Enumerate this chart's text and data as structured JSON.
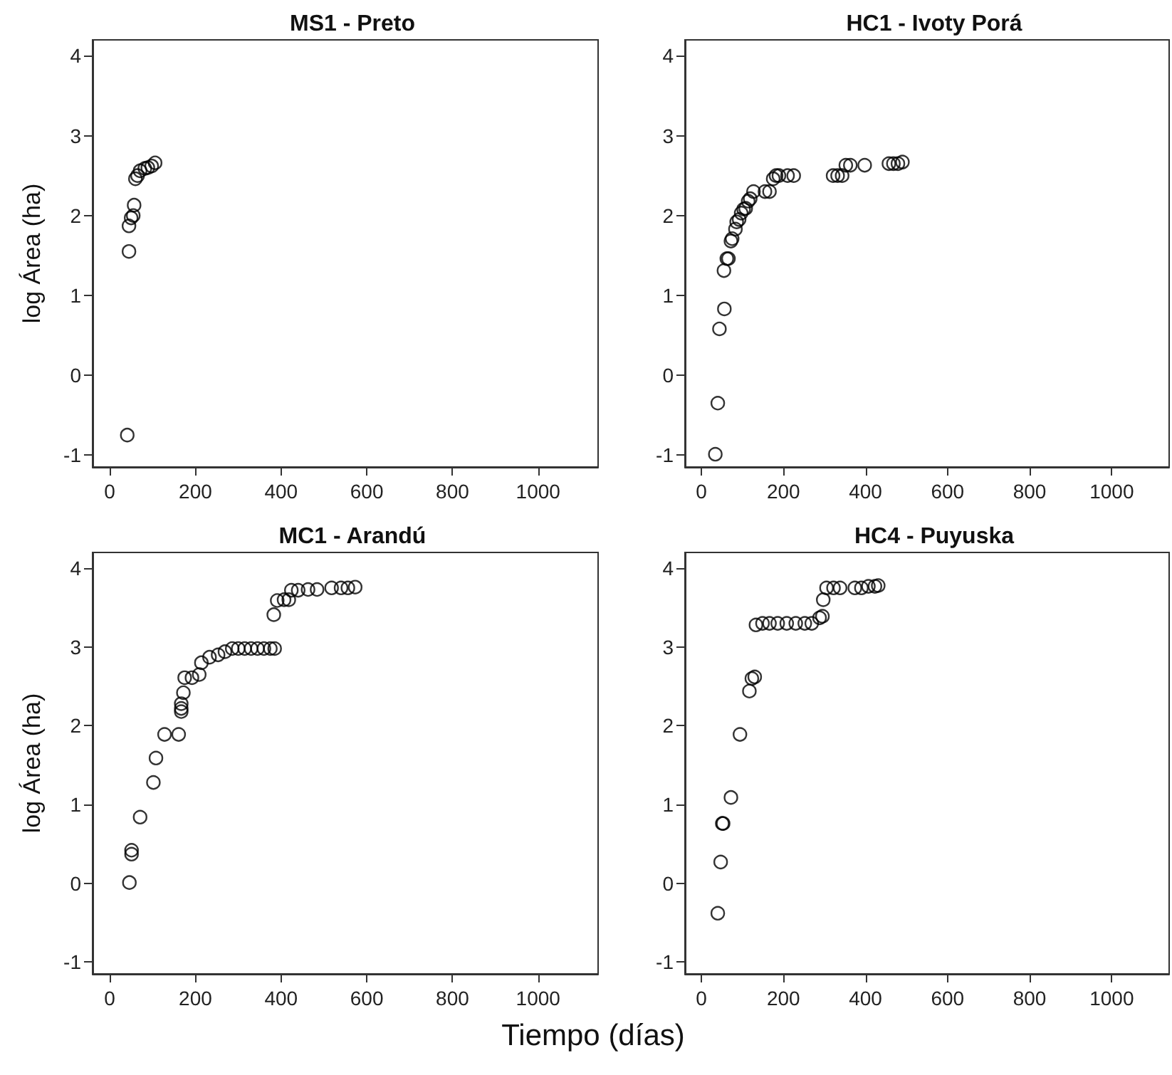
{
  "chart_data": [
    {
      "type": "scatter",
      "title": "MS1 - Preto",
      "ylabel": "log Área (ha)",
      "color": "#000000",
      "marker": "circle",
      "x": [
        41,
        45,
        45,
        50,
        55,
        57,
        60,
        65,
        71,
        82,
        89,
        98,
        106
      ],
      "values": [
        -0.75,
        1.55,
        1.87,
        1.97,
        2.0,
        2.13,
        2.46,
        2.5,
        2.56,
        2.59,
        2.6,
        2.62,
        2.66
      ],
      "xlim": [
        -40,
        1140
      ],
      "ylim": [
        -1.15,
        4.2
      ],
      "xticks": [
        0,
        200,
        400,
        600,
        800,
        1000
      ],
      "yticks": [
        -1,
        0,
        1,
        2,
        3,
        4
      ]
    },
    {
      "type": "scatter",
      "title": "HC1 - Ivoty Porá",
      "color": "#000000",
      "marker": "circle",
      "x": [
        34,
        40,
        44,
        56,
        55,
        62,
        66,
        72,
        75,
        83,
        86,
        92,
        97,
        103,
        108,
        114,
        119,
        127,
        155,
        166,
        175,
        182,
        189,
        210,
        225,
        321,
        332,
        343,
        352,
        363,
        398,
        457,
        468,
        479,
        490
      ],
      "values": [
        -0.99,
        -0.35,
        0.58,
        0.83,
        1.31,
        1.46,
        1.46,
        1.68,
        1.71,
        1.83,
        1.92,
        1.95,
        2.03,
        2.08,
        2.09,
        2.18,
        2.21,
        2.3,
        2.3,
        2.3,
        2.46,
        2.5,
        2.5,
        2.5,
        2.5,
        2.5,
        2.5,
        2.5,
        2.63,
        2.63,
        2.63,
        2.65,
        2.65,
        2.65,
        2.67
      ],
      "xlim": [
        -40,
        1140
      ],
      "ylim": [
        -1.15,
        4.2
      ],
      "xticks": [
        0,
        200,
        400,
        600,
        800,
        1000
      ],
      "yticks": [
        -1,
        0,
        1,
        2,
        3,
        4
      ]
    },
    {
      "type": "scatter",
      "title": "MC1 - Arandú",
      "ylabel": "log Área (ha)",
      "xlabel": "Tiempo (días)",
      "color": "#000000",
      "marker": "circle",
      "x": [
        46,
        51,
        51,
        71,
        102,
        108,
        128,
        161,
        167,
        167,
        167,
        172,
        175,
        192,
        209,
        214,
        233,
        253,
        269,
        286,
        300,
        315,
        330,
        345,
        360,
        375,
        385,
        383,
        391,
        407,
        418,
        424,
        440,
        463,
        484,
        518,
        540,
        556,
        573
      ],
      "values": [
        0.01,
        0.37,
        0.42,
        0.84,
        1.28,
        1.59,
        1.89,
        1.89,
        2.18,
        2.22,
        2.28,
        2.42,
        2.61,
        2.61,
        2.65,
        2.8,
        2.87,
        2.9,
        2.94,
        2.98,
        2.98,
        2.98,
        2.98,
        2.98,
        2.98,
        2.98,
        2.98,
        3.41,
        3.59,
        3.6,
        3.6,
        3.72,
        3.72,
        3.73,
        3.73,
        3.75,
        3.75,
        3.75,
        3.76
      ],
      "xlim": [
        -40,
        1140
      ],
      "ylim": [
        -1.15,
        4.2
      ],
      "xticks": [
        0,
        200,
        400,
        600,
        800,
        1000
      ],
      "yticks": [
        -1,
        0,
        1,
        2,
        3,
        4
      ]
    },
    {
      "type": "scatter",
      "title": "HC4 - Puyuska",
      "color": "#000000",
      "marker": "circle",
      "x": [
        40,
        47,
        51,
        53,
        72,
        94,
        117,
        123,
        130,
        133,
        149,
        166,
        186,
        208,
        230,
        252,
        269,
        288,
        295,
        297,
        305,
        322,
        338,
        374,
        390,
        407,
        423,
        431
      ],
      "values": [
        -0.38,
        0.27,
        0.76,
        0.76,
        1.09,
        1.89,
        2.44,
        2.6,
        2.62,
        3.28,
        3.3,
        3.3,
        3.3,
        3.3,
        3.3,
        3.3,
        3.3,
        3.37,
        3.39,
        3.6,
        3.75,
        3.75,
        3.75,
        3.75,
        3.75,
        3.77,
        3.77,
        3.78
      ],
      "xlim": [
        -40,
        1140
      ],
      "ylim": [
        -1.15,
        4.2
      ],
      "xticks": [
        0,
        200,
        400,
        600,
        800,
        1000
      ],
      "yticks": [
        -1,
        0,
        1,
        2,
        3,
        4
      ]
    }
  ]
}
